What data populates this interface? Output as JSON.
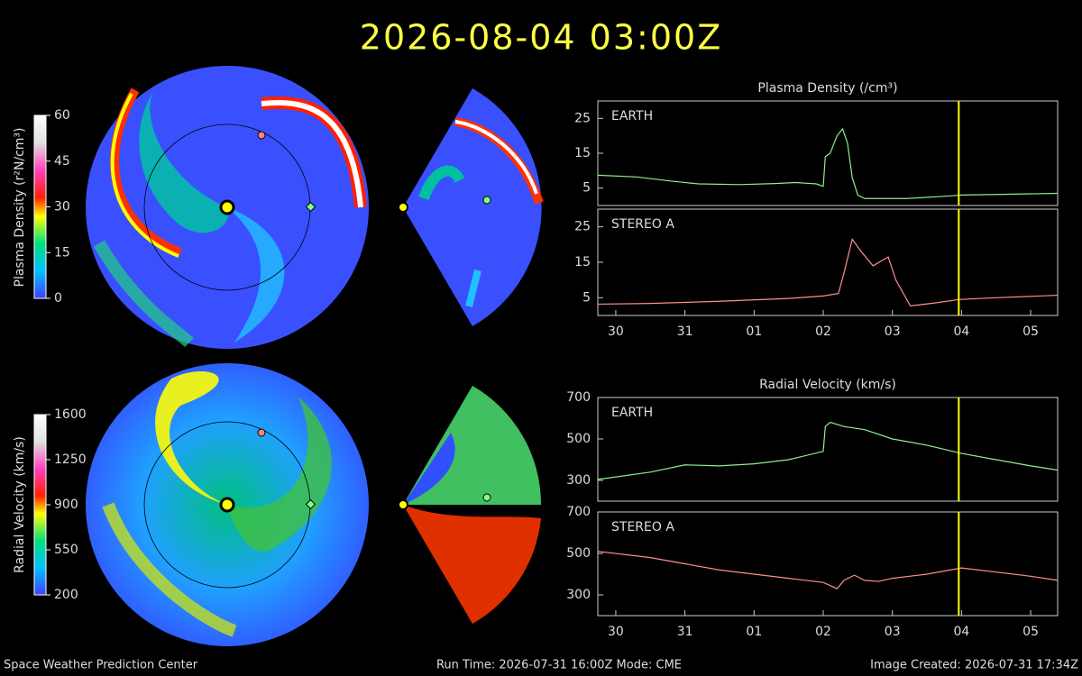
{
  "header": {
    "title": "2026-08-04  03:00Z"
  },
  "colorbars": [
    {
      "label": "Plasma Density (r²N/cm³)",
      "lim": [
        0,
        60
      ],
      "ticks": [
        0,
        15,
        30,
        45,
        60
      ]
    },
    {
      "label": "Radial Velocity (km/s)",
      "lim": [
        200,
        1600
      ],
      "ticks": [
        200,
        550,
        900,
        1250,
        1600
      ]
    }
  ],
  "chart_data": [
    {
      "type": "line",
      "title": "Plasma Density (/cm³)",
      "x": [
        -0.26,
        0.3,
        0.8,
        1.2,
        1.8,
        2.3,
        2.6,
        2.9,
        3.0,
        3.03,
        3.1,
        3.2,
        3.28,
        3.35,
        3.42,
        3.5,
        3.6,
        4.2,
        4.8,
        5.0,
        5.6,
        6.39
      ],
      "series": [
        {
          "name": "EARTH",
          "color": "#8fef8f",
          "values": [
            8.7,
            8.2,
            7,
            6.2,
            6.0,
            6.3,
            6.6,
            6.2,
            5.5,
            14,
            15,
            20,
            22,
            18,
            8,
            3,
            2,
            2,
            2.7,
            3,
            3.2,
            3.5
          ]
        }
      ],
      "xlim": [
        -0.26,
        6.39
      ],
      "ylim": [
        0,
        30
      ],
      "yticks": [
        5,
        15,
        25
      ],
      "vline": 4.96
    },
    {
      "type": "line",
      "x": [
        -0.26,
        0.5,
        1.5,
        2.5,
        3.0,
        3.22,
        3.3,
        3.42,
        3.55,
        3.72,
        3.85,
        3.94,
        4.05,
        4.26,
        4.6,
        4.96,
        5.5,
        6.39
      ],
      "series": [
        {
          "name": "STEREO A",
          "color": "#ff8f8f",
          "values": [
            3.2,
            3.4,
            4.0,
            4.8,
            5.5,
            6.2,
            12,
            21.5,
            18,
            14,
            15.5,
            16.5,
            10,
            2.7,
            3.5,
            4.5,
            5.0,
            5.7
          ]
        }
      ],
      "xlim": [
        -0.26,
        6.39
      ],
      "ylim": [
        0,
        30
      ],
      "yticks": [
        5,
        15,
        25
      ],
      "vline": 4.96,
      "xticks": [
        {
          "value": 0,
          "label": "30"
        },
        {
          "value": 1,
          "label": "31"
        },
        {
          "value": 2,
          "label": "01"
        },
        {
          "value": 3,
          "label": "02"
        },
        {
          "value": 4,
          "label": "03"
        },
        {
          "value": 5,
          "label": "04"
        },
        {
          "value": 6,
          "label": "05"
        }
      ]
    },
    {
      "type": "line",
      "title": "Radial Velocity (km/s)",
      "x": [
        -0.26,
        0.5,
        1.0,
        1.5,
        2.0,
        2.5,
        3.0,
        3.03,
        3.1,
        3.3,
        3.6,
        4.0,
        4.5,
        5.0,
        5.5,
        6.0,
        6.39
      ],
      "series": [
        {
          "name": "EARTH",
          "color": "#8fef8f",
          "values": [
            305,
            340,
            375,
            370,
            380,
            400,
            440,
            560,
            580,
            560,
            545,
            500,
            470,
            430,
            400,
            370,
            350
          ]
        }
      ],
      "xlim": [
        -0.26,
        6.39
      ],
      "ylim": [
        200,
        700
      ],
      "yticks": [
        300,
        500,
        700
      ],
      "vline": 4.96
    },
    {
      "type": "line",
      "x": [
        -0.26,
        0.5,
        1.0,
        1.5,
        2.0,
        2.5,
        3.0,
        3.2,
        3.3,
        3.45,
        3.6,
        3.8,
        4.0,
        4.5,
        5.0,
        5.5,
        6.0,
        6.39
      ],
      "series": [
        {
          "name": "STEREO A",
          "color": "#ff8f8f",
          "values": [
            510,
            480,
            450,
            420,
            400,
            380,
            360,
            330,
            370,
            395,
            370,
            365,
            380,
            400,
            430,
            410,
            390,
            370
          ]
        }
      ],
      "xlim": [
        -0.26,
        6.39
      ],
      "ylim": [
        200,
        700
      ],
      "yticks": [
        300,
        500,
        700
      ],
      "vline": 4.96,
      "xticks": [
        {
          "value": 0,
          "label": "30"
        },
        {
          "value": 1,
          "label": "31"
        },
        {
          "value": 2,
          "label": "01"
        },
        {
          "value": 3,
          "label": "02"
        },
        {
          "value": 4,
          "label": "03"
        },
        {
          "value": 5,
          "label": "04"
        },
        {
          "value": 6,
          "label": "05"
        }
      ]
    }
  ],
  "footer": {
    "left": "Space Weather Prediction Center",
    "center": "Run Time: 2026-07-31 16:00Z  Mode: CME",
    "right": "Image Created: 2026-07-31 17:34Z"
  }
}
